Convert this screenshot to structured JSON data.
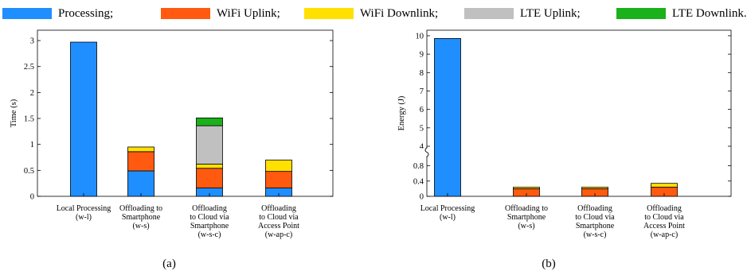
{
  "legend": [
    {
      "label": "Processing;",
      "color": "#1f8fff"
    },
    {
      "label": "WiFi Uplink;",
      "color": "#ff5a0f"
    },
    {
      "label": "WiFi Downlink;",
      "color": "#ffe000"
    },
    {
      "label": "LTE Uplink;",
      "color": "#c0c0c0"
    },
    {
      "label": "LTE Downlink.",
      "color": "#1ab11a"
    }
  ],
  "chart_data": [
    {
      "type": "bar",
      "stacked": true,
      "panel_label": "(a)",
      "ylabel": "Time (s)",
      "ylim": [
        0,
        3.2
      ],
      "yticks": [
        "0",
        "0.5",
        "1",
        "1.5",
        "2",
        "2.5",
        "3"
      ],
      "categories": [
        [
          "Local Processing",
          "(w-l)"
        ],
        [
          "Offloading to",
          "Smartphone",
          "(w-s)"
        ],
        [
          "Offloading",
          "to Cloud via",
          "Smartphone",
          "(w-s-c)"
        ],
        [
          "Offloading",
          "to Cloud via",
          "Access Point",
          "(w-ap-c)"
        ]
      ],
      "series": [
        {
          "name": "Processing",
          "values": [
            2.97,
            0.49,
            0.16,
            0.16
          ]
        },
        {
          "name": "WiFi Uplink",
          "values": [
            0,
            0.37,
            0.38,
            0.32
          ]
        },
        {
          "name": "WiFi Downlink",
          "values": [
            0,
            0.09,
            0.08,
            0.22
          ]
        },
        {
          "name": "LTE Uplink",
          "values": [
            0,
            0,
            0.74,
            0
          ]
        },
        {
          "name": "LTE Downlink",
          "values": [
            0,
            0,
            0.15,
            0
          ]
        }
      ]
    },
    {
      "type": "bar",
      "stacked": true,
      "panel_label": "(b)",
      "ylabel": "Energy (J)",
      "broken_axis": {
        "lower": [
          0,
          1.0
        ],
        "upper": [
          4,
          10.3
        ]
      },
      "yticks": [
        "0",
        "0.4",
        "0.8",
        "4",
        "5",
        "6",
        "7",
        "8",
        "9",
        "10"
      ],
      "categories": [
        [
          "Local Processing",
          "(w-l)"
        ],
        [
          "Offloading to",
          "Smartphone",
          "(w-s)"
        ],
        [
          "Offloading",
          "to Cloud via",
          "Smartphone",
          "(w-s-c)"
        ],
        [
          "Offloading",
          "to Cloud via",
          "Access Point",
          "(w-ap-c)"
        ]
      ],
      "series": [
        {
          "name": "Processing",
          "values": [
            9.85,
            0,
            0,
            0
          ]
        },
        {
          "name": "WiFi Uplink",
          "values": [
            0,
            0.2,
            0.2,
            0.24
          ]
        },
        {
          "name": "WiFi Downlink",
          "values": [
            0,
            0.04,
            0.04,
            0.1
          ]
        },
        {
          "name": "LTE Uplink",
          "values": [
            0,
            0,
            0,
            0
          ]
        },
        {
          "name": "LTE Downlink",
          "values": [
            0,
            0,
            0,
            0
          ]
        }
      ]
    }
  ]
}
